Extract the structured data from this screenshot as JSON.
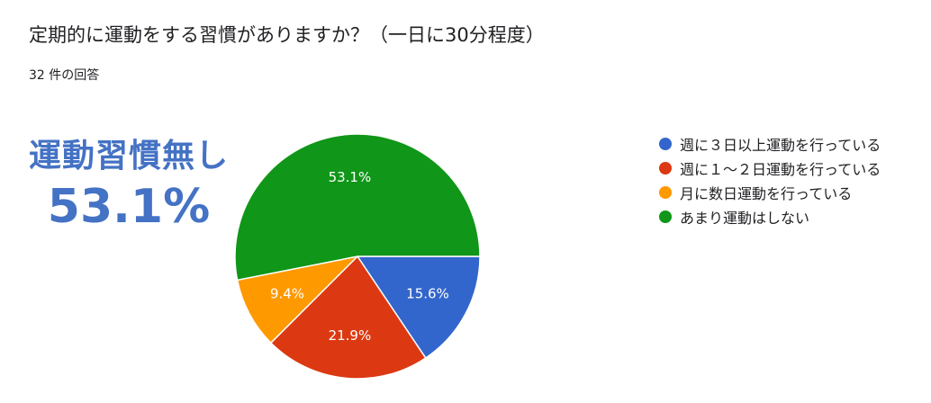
{
  "question": {
    "title": "定期的に運動をする習慣がありますか？（一日に30分程度）",
    "response_count": "32 件の回答"
  },
  "callout": {
    "label": "運動習慣無し",
    "value": "53.1%"
  },
  "chart_data": {
    "type": "pie",
    "categories": [
      "週に３日以上運動を行っている",
      "週に１〜２日運動を行っている",
      "月に数日運動を行っている",
      "あまり運動はしない"
    ],
    "values": [
      15.6,
      21.9,
      9.4,
      53.1
    ],
    "value_labels": [
      "15.6%",
      "21.9%",
      "9.4%",
      "53.1%"
    ],
    "colors": [
      "#3366cc",
      "#dc3912",
      "#ff9900",
      "#109618"
    ],
    "legend_position": "right"
  }
}
